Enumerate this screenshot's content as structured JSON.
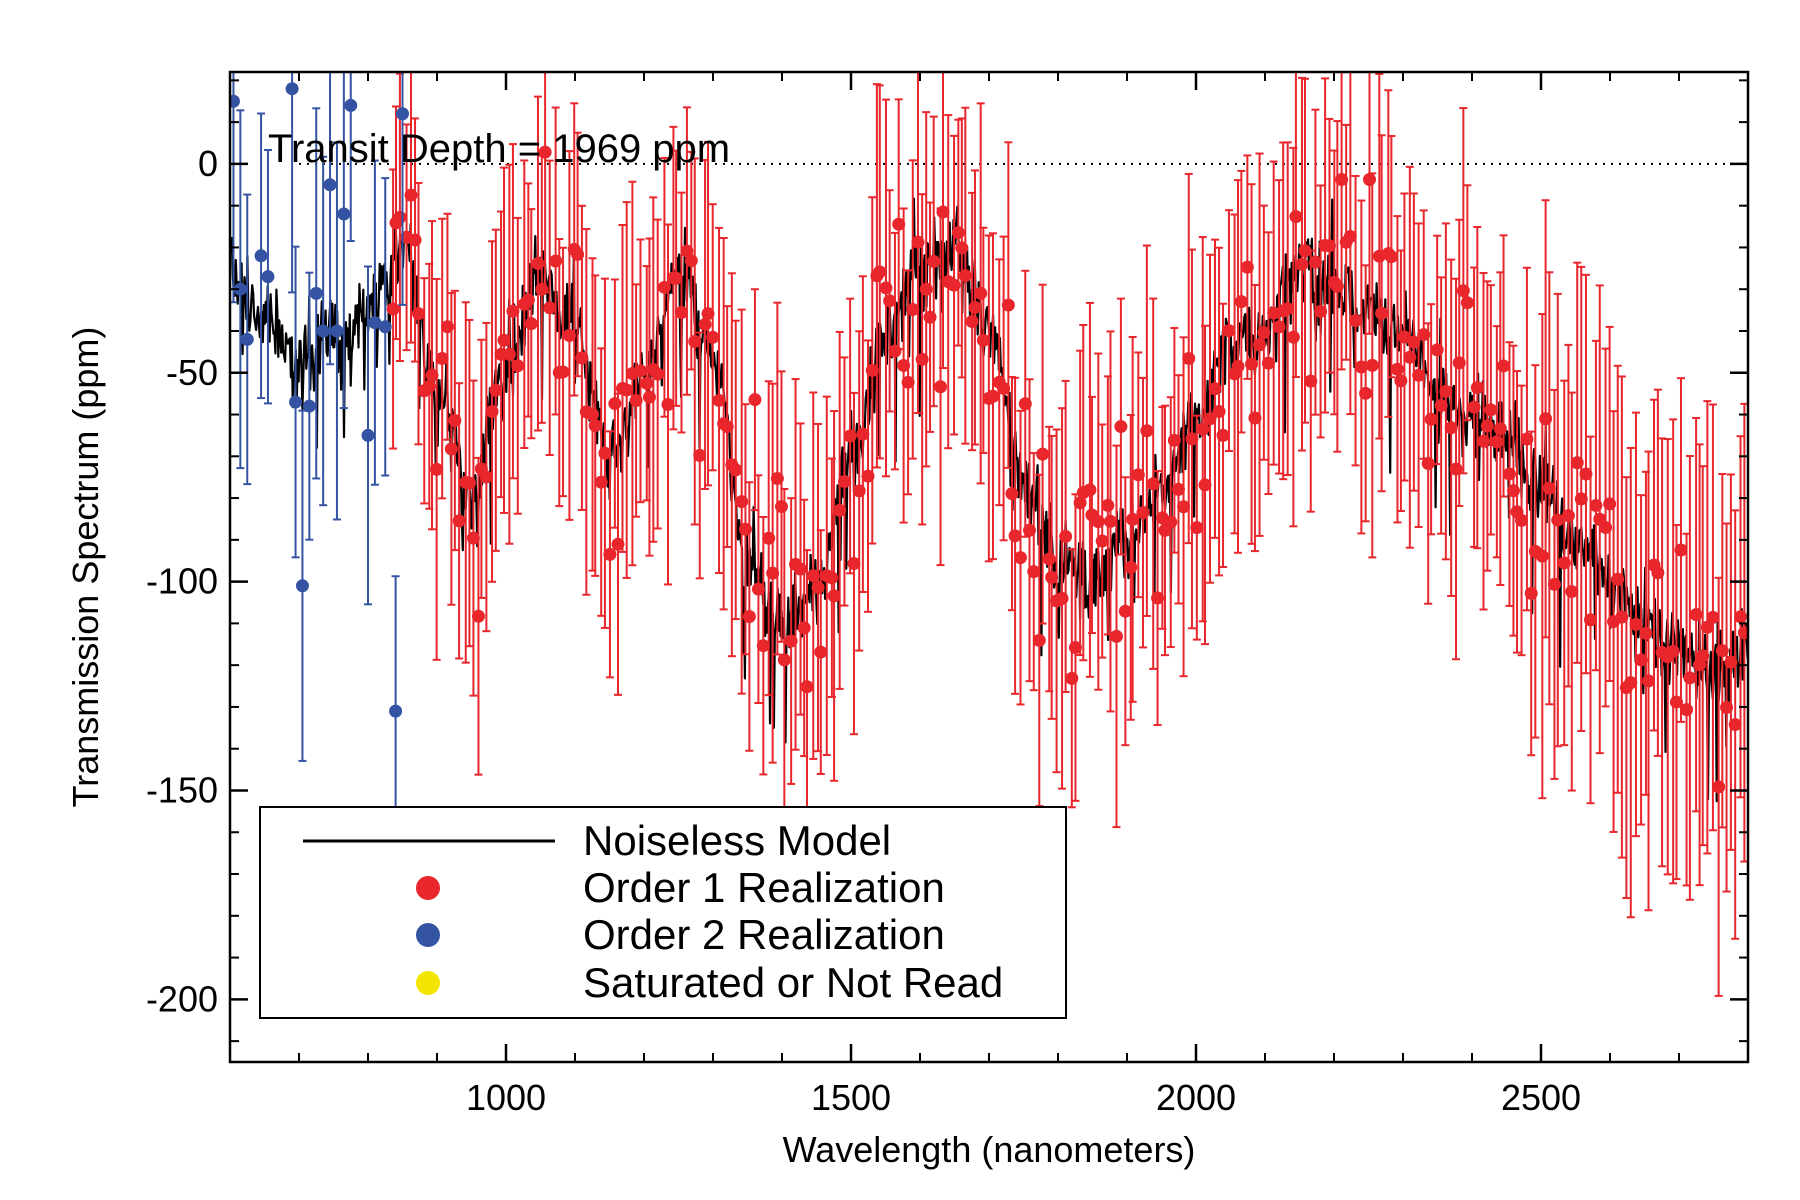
{
  "chart_data": {
    "type": "scatter",
    "title": "",
    "xlabel": "Wavelength (nanometers)",
    "ylabel": "Transmission Spectrum (ppm)",
    "xlim": [
      600,
      2800
    ],
    "ylim": [
      -215,
      22
    ],
    "x_ticks": [
      1000,
      1500,
      2000,
      2500
    ],
    "y_ticks": [
      0,
      -50,
      -100,
      -150,
      -200
    ],
    "annotation": "Transit Depth =   1969 ppm",
    "reference_line": {
      "y": 0,
      "style": "dotted"
    },
    "grid": false,
    "legend_position": "bottom-left",
    "colors": {
      "model": "#000000",
      "order1": "#e8262b",
      "order2": "#3553a3",
      "saturated": "#f2e600"
    },
    "series": [
      {
        "name": "Noiseless Model",
        "kind": "line",
        "anchors_x": [
          600,
          640,
          700,
          760,
          800,
          850,
          900,
          950,
          1000,
          1050,
          1100,
          1150,
          1200,
          1250,
          1300,
          1350,
          1400,
          1450,
          1500,
          1550,
          1600,
          1650,
          1700,
          1750,
          1800,
          1850,
          1900,
          1950,
          2000,
          2050,
          2100,
          2150,
          2200,
          2250,
          2300,
          2350,
          2400,
          2450,
          2500,
          2550,
          2600,
          2650,
          2700,
          2750,
          2800
        ],
        "anchors_y": [
          -25,
          -35,
          -45,
          -40,
          -35,
          -20,
          -55,
          -80,
          -50,
          -25,
          -40,
          -70,
          -50,
          -25,
          -45,
          -95,
          -110,
          -100,
          -70,
          -40,
          -25,
          -20,
          -40,
          -75,
          -95,
          -100,
          -90,
          -80,
          -60,
          -45,
          -40,
          -25,
          -30,
          -35,
          -40,
          -55,
          -60,
          -65,
          -80,
          -90,
          -100,
          -110,
          -115,
          -120,
          -115
        ]
      },
      {
        "name": "Order 1 Realization",
        "kind": "errorbar",
        "x_range": [
          835,
          2795
        ],
        "count": 300
      },
      {
        "name": "Order 2 Realization",
        "kind": "errorbar",
        "points": [
          {
            "x": 605,
            "y": 15
          },
          {
            "x": 615,
            "y": -30
          },
          {
            "x": 625,
            "y": -42
          },
          {
            "x": 645,
            "y": -22
          },
          {
            "x": 655,
            "y": -27
          },
          {
            "x": 690,
            "y": 18
          },
          {
            "x": 695,
            "y": -57
          },
          {
            "x": 705,
            "y": -101
          },
          {
            "x": 715,
            "y": -58
          },
          {
            "x": 725,
            "y": -31
          },
          {
            "x": 735,
            "y": -40
          },
          {
            "x": 745,
            "y": -5
          },
          {
            "x": 755,
            "y": -40
          },
          {
            "x": 765,
            "y": -12
          },
          {
            "x": 775,
            "y": 14
          },
          {
            "x": 800,
            "y": -65
          },
          {
            "x": 810,
            "y": -38
          },
          {
            "x": 825,
            "y": -39
          },
          {
            "x": 840,
            "y": -131
          },
          {
            "x": 850,
            "y": 12
          }
        ]
      },
      {
        "name": "Saturated or Not Read",
        "kind": "marker",
        "points": []
      }
    ]
  }
}
